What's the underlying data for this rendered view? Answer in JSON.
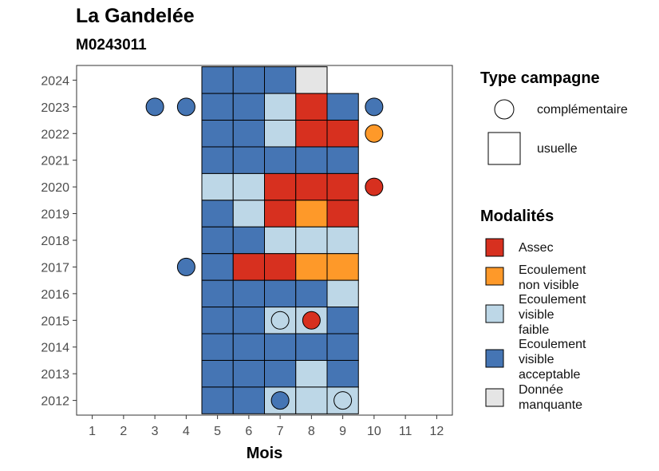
{
  "title": "La Gandelée",
  "subtitle": "M0243011",
  "chart_data": {
    "type": "heatmap",
    "xlabel": "Mois",
    "ylabel": "",
    "x_ticks": [
      "1",
      "2",
      "3",
      "4",
      "5",
      "6",
      "7",
      "8",
      "9",
      "10",
      "11",
      "12"
    ],
    "y_ticks": [
      "2012",
      "2013",
      "2014",
      "2015",
      "2016",
      "2017",
      "2018",
      "2019",
      "2020",
      "2021",
      "2022",
      "2023",
      "2024"
    ],
    "xlim": [
      0.5,
      12.5
    ],
    "ylim": [
      2011.45,
      2024.55
    ],
    "grid": false,
    "legend_position": "right",
    "modalities": [
      {
        "key": "assec",
        "label": "Assec",
        "color": "#d7301f"
      },
      {
        "key": "ecoulement_non_visible",
        "label": "Ecoulement\nnon visible",
        "color": "#fe9929"
      },
      {
        "key": "ecoulement_visible_faible",
        "label": "Ecoulement\nvisible\nfaible",
        "color": "#bdd7e7"
      },
      {
        "key": "ecoulement_visible_acceptable",
        "label": "Ecoulement\nvisible\nacceptable",
        "color": "#4575b4"
      },
      {
        "key": "donnee_manquante",
        "label": "Donnée\nmanquante",
        "color": "#e5e5e5"
      }
    ],
    "campaign_types": [
      {
        "key": "complementaire",
        "label": "complémentaire",
        "shape": "circle"
      },
      {
        "key": "usuelle",
        "label": "usuelle",
        "shape": "square"
      }
    ],
    "legend_titles": {
      "type": "Type campagne",
      "modalites": "Modalités"
    },
    "observations": [
      {
        "year": 2024,
        "month": 5,
        "type": "usuelle",
        "modalite": "ecoulement_visible_acceptable"
      },
      {
        "year": 2024,
        "month": 6,
        "type": "usuelle",
        "modalite": "ecoulement_visible_acceptable"
      },
      {
        "year": 2024,
        "month": 7,
        "type": "usuelle",
        "modalite": "ecoulement_visible_acceptable"
      },
      {
        "year": 2024,
        "month": 8,
        "type": "usuelle",
        "modalite": "donnee_manquante"
      },
      {
        "year": 2023,
        "month": 3,
        "type": "complementaire",
        "modalite": "ecoulement_visible_acceptable"
      },
      {
        "year": 2023,
        "month": 4,
        "type": "complementaire",
        "modalite": "ecoulement_visible_acceptable"
      },
      {
        "year": 2023,
        "month": 5,
        "type": "usuelle",
        "modalite": "ecoulement_visible_acceptable"
      },
      {
        "year": 2023,
        "month": 6,
        "type": "usuelle",
        "modalite": "ecoulement_visible_acceptable"
      },
      {
        "year": 2023,
        "month": 7,
        "type": "usuelle",
        "modalite": "ecoulement_visible_faible"
      },
      {
        "year": 2023,
        "month": 8,
        "type": "usuelle",
        "modalite": "assec"
      },
      {
        "year": 2023,
        "month": 9,
        "type": "usuelle",
        "modalite": "ecoulement_visible_acceptable"
      },
      {
        "year": 2023,
        "month": 10,
        "type": "complementaire",
        "modalite": "ecoulement_visible_acceptable"
      },
      {
        "year": 2022,
        "month": 5,
        "type": "usuelle",
        "modalite": "ecoulement_visible_acceptable"
      },
      {
        "year": 2022,
        "month": 6,
        "type": "usuelle",
        "modalite": "ecoulement_visible_acceptable"
      },
      {
        "year": 2022,
        "month": 7,
        "type": "usuelle",
        "modalite": "ecoulement_visible_faible"
      },
      {
        "year": 2022,
        "month": 8,
        "type": "usuelle",
        "modalite": "assec"
      },
      {
        "year": 2022,
        "month": 9,
        "type": "usuelle",
        "modalite": "assec"
      },
      {
        "year": 2022,
        "month": 10,
        "type": "complementaire",
        "modalite": "ecoulement_non_visible"
      },
      {
        "year": 2021,
        "month": 5,
        "type": "usuelle",
        "modalite": "ecoulement_visible_acceptable"
      },
      {
        "year": 2021,
        "month": 6,
        "type": "usuelle",
        "modalite": "ecoulement_visible_acceptable"
      },
      {
        "year": 2021,
        "month": 7,
        "type": "usuelle",
        "modalite": "ecoulement_visible_acceptable"
      },
      {
        "year": 2021,
        "month": 8,
        "type": "usuelle",
        "modalite": "ecoulement_visible_acceptable"
      },
      {
        "year": 2021,
        "month": 9,
        "type": "usuelle",
        "modalite": "ecoulement_visible_acceptable"
      },
      {
        "year": 2020,
        "month": 5,
        "type": "usuelle",
        "modalite": "ecoulement_visible_faible"
      },
      {
        "year": 2020,
        "month": 6,
        "type": "usuelle",
        "modalite": "ecoulement_visible_faible"
      },
      {
        "year": 2020,
        "month": 7,
        "type": "usuelle",
        "modalite": "assec"
      },
      {
        "year": 2020,
        "month": 8,
        "type": "usuelle",
        "modalite": "assec"
      },
      {
        "year": 2020,
        "month": 9,
        "type": "usuelle",
        "modalite": "assec"
      },
      {
        "year": 2020,
        "month": 10,
        "type": "complementaire",
        "modalite": "assec"
      },
      {
        "year": 2019,
        "month": 5,
        "type": "usuelle",
        "modalite": "ecoulement_visible_acceptable"
      },
      {
        "year": 2019,
        "month": 6,
        "type": "usuelle",
        "modalite": "ecoulement_visible_faible"
      },
      {
        "year": 2019,
        "month": 7,
        "type": "usuelle",
        "modalite": "assec"
      },
      {
        "year": 2019,
        "month": 8,
        "type": "usuelle",
        "modalite": "ecoulement_non_visible"
      },
      {
        "year": 2019,
        "month": 9,
        "type": "usuelle",
        "modalite": "assec"
      },
      {
        "year": 2018,
        "month": 5,
        "type": "usuelle",
        "modalite": "ecoulement_visible_acceptable"
      },
      {
        "year": 2018,
        "month": 6,
        "type": "usuelle",
        "modalite": "ecoulement_visible_acceptable"
      },
      {
        "year": 2018,
        "month": 7,
        "type": "usuelle",
        "modalite": "ecoulement_visible_faible"
      },
      {
        "year": 2018,
        "month": 8,
        "type": "usuelle",
        "modalite": "ecoulement_visible_faible"
      },
      {
        "year": 2018,
        "month": 9,
        "type": "usuelle",
        "modalite": "ecoulement_visible_faible"
      },
      {
        "year": 2017,
        "month": 4,
        "type": "complementaire",
        "modalite": "ecoulement_visible_acceptable"
      },
      {
        "year": 2017,
        "month": 5,
        "type": "usuelle",
        "modalite": "ecoulement_visible_acceptable"
      },
      {
        "year": 2017,
        "month": 6,
        "type": "usuelle",
        "modalite": "assec"
      },
      {
        "year": 2017,
        "month": 7,
        "type": "usuelle",
        "modalite": "assec"
      },
      {
        "year": 2017,
        "month": 8,
        "type": "usuelle",
        "modalite": "ecoulement_non_visible"
      },
      {
        "year": 2017,
        "month": 9,
        "type": "usuelle",
        "modalite": "ecoulement_non_visible"
      },
      {
        "year": 2016,
        "month": 5,
        "type": "usuelle",
        "modalite": "ecoulement_visible_acceptable"
      },
      {
        "year": 2016,
        "month": 6,
        "type": "usuelle",
        "modalite": "ecoulement_visible_acceptable"
      },
      {
        "year": 2016,
        "month": 7,
        "type": "usuelle",
        "modalite": "ecoulement_visible_acceptable"
      },
      {
        "year": 2016,
        "month": 8,
        "type": "usuelle",
        "modalite": "ecoulement_visible_acceptable"
      },
      {
        "year": 2016,
        "month": 9,
        "type": "usuelle",
        "modalite": "ecoulement_visible_faible"
      },
      {
        "year": 2015,
        "month": 5,
        "type": "usuelle",
        "modalite": "ecoulement_visible_acceptable"
      },
      {
        "year": 2015,
        "month": 6,
        "type": "usuelle",
        "modalite": "ecoulement_visible_acceptable"
      },
      {
        "year": 2015,
        "month": 7,
        "type": "usuelle",
        "modalite": "ecoulement_visible_faible"
      },
      {
        "year": 2015,
        "month": 7,
        "type": "complementaire",
        "modalite": "ecoulement_visible_faible"
      },
      {
        "year": 2015,
        "month": 8,
        "type": "usuelle",
        "modalite": "ecoulement_visible_faible"
      },
      {
        "year": 2015,
        "month": 8,
        "type": "complementaire",
        "modalite": "assec"
      },
      {
        "year": 2015,
        "month": 9,
        "type": "usuelle",
        "modalite": "ecoulement_visible_acceptable"
      },
      {
        "year": 2014,
        "month": 5,
        "type": "usuelle",
        "modalite": "ecoulement_visible_acceptable"
      },
      {
        "year": 2014,
        "month": 6,
        "type": "usuelle",
        "modalite": "ecoulement_visible_acceptable"
      },
      {
        "year": 2014,
        "month": 7,
        "type": "usuelle",
        "modalite": "ecoulement_visible_acceptable"
      },
      {
        "year": 2014,
        "month": 8,
        "type": "usuelle",
        "modalite": "ecoulement_visible_acceptable"
      },
      {
        "year": 2014,
        "month": 9,
        "type": "usuelle",
        "modalite": "ecoulement_visible_acceptable"
      },
      {
        "year": 2013,
        "month": 5,
        "type": "usuelle",
        "modalite": "ecoulement_visible_acceptable"
      },
      {
        "year": 2013,
        "month": 6,
        "type": "usuelle",
        "modalite": "ecoulement_visible_acceptable"
      },
      {
        "year": 2013,
        "month": 7,
        "type": "usuelle",
        "modalite": "ecoulement_visible_acceptable"
      },
      {
        "year": 2013,
        "month": 8,
        "type": "usuelle",
        "modalite": "ecoulement_visible_faible"
      },
      {
        "year": 2013,
        "month": 9,
        "type": "usuelle",
        "modalite": "ecoulement_visible_acceptable"
      },
      {
        "year": 2012,
        "month": 5,
        "type": "usuelle",
        "modalite": "ecoulement_visible_acceptable"
      },
      {
        "year": 2012,
        "month": 6,
        "type": "usuelle",
        "modalite": "ecoulement_visible_acceptable"
      },
      {
        "year": 2012,
        "month": 7,
        "type": "usuelle",
        "modalite": "ecoulement_visible_faible"
      },
      {
        "year": 2012,
        "month": 7,
        "type": "complementaire",
        "modalite": "ecoulement_visible_acceptable"
      },
      {
        "year": 2012,
        "month": 8,
        "type": "usuelle",
        "modalite": "ecoulement_visible_faible"
      },
      {
        "year": 2012,
        "month": 9,
        "type": "usuelle",
        "modalite": "ecoulement_visible_faible"
      },
      {
        "year": 2012,
        "month": 9,
        "type": "complementaire",
        "modalite": "ecoulement_visible_faible"
      }
    ]
  }
}
